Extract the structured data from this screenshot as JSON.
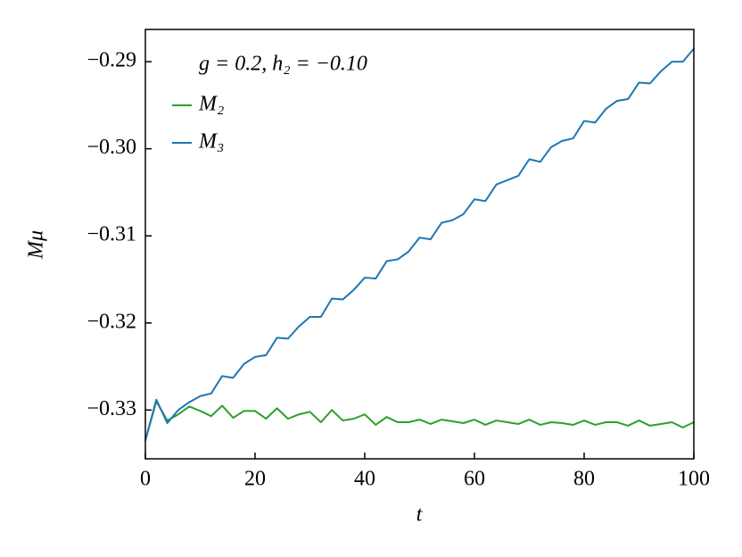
{
  "chart_data": {
    "type": "line",
    "xlabel": "t",
    "ylabel": "Mμ",
    "legend_title": "g = 0.2, h₂ = −0.10",
    "legend": "upper left",
    "x": [
      0,
      2,
      4,
      6,
      8,
      10,
      12,
      14,
      16,
      18,
      20,
      22,
      24,
      26,
      28,
      30,
      32,
      34,
      36,
      38,
      40,
      42,
      44,
      46,
      48,
      50,
      52,
      54,
      56,
      58,
      60,
      62,
      64,
      66,
      68,
      70,
      72,
      74,
      76,
      78,
      80,
      82,
      84,
      86,
      88,
      90,
      92,
      94,
      96,
      98,
      100
    ],
    "series": [
      {
        "name": "M₂",
        "color": "#2ca02c",
        "values": [
          -0.3335,
          -0.329,
          -0.3312,
          -0.3305,
          -0.3296,
          -0.3301,
          -0.3307,
          -0.3295,
          -0.3309,
          -0.3301,
          -0.3301,
          -0.331,
          -0.3298,
          -0.331,
          -0.3305,
          -0.3302,
          -0.3314,
          -0.33,
          -0.3312,
          -0.331,
          -0.3305,
          -0.3317,
          -0.3308,
          -0.3314,
          -0.3314,
          -0.3311,
          -0.3316,
          -0.3311,
          -0.3313,
          -0.3315,
          -0.3311,
          -0.3317,
          -0.3312,
          -0.3314,
          -0.3316,
          -0.3311,
          -0.3317,
          -0.3314,
          -0.3315,
          -0.3317,
          -0.3312,
          -0.3317,
          -0.3314,
          -0.3314,
          -0.3318,
          -0.3312,
          -0.3318,
          -0.3316,
          -0.3314,
          -0.332,
          -0.3314
        ]
      },
      {
        "name": "M₃",
        "color": "#1f77b4",
        "values": [
          -0.3335,
          -0.3288,
          -0.3315,
          -0.33,
          -0.3291,
          -0.3284,
          -0.3281,
          -0.3261,
          -0.3263,
          -0.3247,
          -0.3239,
          -0.3237,
          -0.3217,
          -0.3218,
          -0.3204,
          -0.3193,
          -0.3193,
          -0.3172,
          -0.3173,
          -0.3162,
          -0.3148,
          -0.3149,
          -0.3129,
          -0.3127,
          -0.3118,
          -0.3102,
          -0.3104,
          -0.3085,
          -0.3082,
          -0.3075,
          -0.3058,
          -0.306,
          -0.3041,
          -0.3036,
          -0.3031,
          -0.3012,
          -0.3015,
          -0.2998,
          -0.2991,
          -0.2988,
          -0.2968,
          -0.297,
          -0.2954,
          -0.2945,
          -0.2943,
          -0.2924,
          -0.2925,
          -0.2911,
          -0.29,
          -0.29,
          -0.2885
        ]
      }
    ],
    "xlim": [
      0,
      100
    ],
    "xticks": [
      0,
      20,
      40,
      60,
      80,
      100
    ],
    "ylim": [
      -0.3356,
      -0.2863
    ],
    "yticks": [
      {
        "value": -0.33,
        "label": "−0.33"
      },
      {
        "value": -0.32,
        "label": "−0.32"
      },
      {
        "value": -0.31,
        "label": "−0.31"
      },
      {
        "value": -0.3,
        "label": "−0.30"
      },
      {
        "value": -0.29,
        "label": "−0.29"
      }
    ],
    "grid": false
  }
}
